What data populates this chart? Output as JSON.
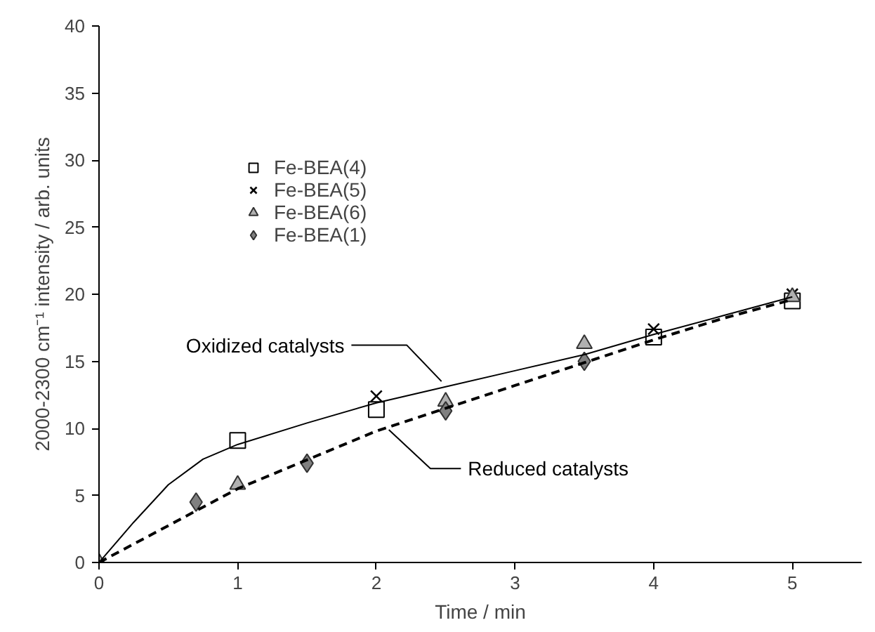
{
  "chart_data": {
    "type": "scatter",
    "xlabel": "Time / min",
    "ylabel": "2000-2300 cm⁻¹ intensity / arb. units",
    "xlim": [
      0,
      5.5
    ],
    "xticks": [
      0,
      1,
      2,
      3,
      4,
      5
    ],
    "ylim": [
      0,
      40
    ],
    "yticks": [
      0,
      5,
      10,
      15,
      20,
      25,
      30,
      35,
      40
    ],
    "grid": false,
    "legend": "top left",
    "series": [
      {
        "name": "Fe-BEA(4)",
        "color": "#ffffff",
        "marker": "square",
        "x": [
          1,
          2,
          4,
          5
        ],
        "values": [
          9.1,
          11.4,
          16.8,
          19.5
        ]
      },
      {
        "name": "Fe-BEA(5)",
        "color": "#000000",
        "marker": "cross",
        "x": [
          2,
          4,
          5
        ],
        "values": [
          12.4,
          17.4,
          20.0
        ]
      },
      {
        "name": "Fe-BEA(6)",
        "color": "#b0b0b0",
        "marker": "triangle",
        "x": [
          0,
          1,
          2.5,
          3.5,
          5
        ],
        "values": [
          0,
          5.8,
          12.0,
          16.3,
          19.8
        ]
      },
      {
        "name": "Fe-BEA(1)",
        "color": "#808080",
        "marker": "diamond",
        "x": [
          0.7,
          1.5,
          2.5,
          3.5
        ],
        "values": [
          4.5,
          7.4,
          11.3,
          15.0
        ]
      },
      {
        "type": "line",
        "color": "#000000",
        "line_style": "solid",
        "x": [
          0,
          0.25,
          0.5,
          0.75,
          1,
          1.5,
          2,
          2.5,
          3,
          3.5,
          4,
          4.5,
          5
        ],
        "values": [
          0,
          3.0,
          5.8,
          7.7,
          8.8,
          10.4,
          11.9,
          13.1,
          14.3,
          15.5,
          17.0,
          18.4,
          19.8
        ]
      },
      {
        "type": "line",
        "color": "#000000",
        "line_style": "dashed",
        "x": [
          0,
          1,
          2,
          2.5,
          3,
          3.5,
          4,
          4.5,
          5
        ],
        "values": [
          0,
          5.5,
          9.8,
          11.5,
          13.2,
          14.9,
          16.6,
          18.2,
          19.6
        ]
      }
    ],
    "annotations": [
      {
        "text": "Oxidized catalysts",
        "x": 2.47,
        "y": 13.5
      },
      {
        "text": "Reduced catalysts",
        "x": 2.09,
        "y": 9.9
      }
    ]
  }
}
